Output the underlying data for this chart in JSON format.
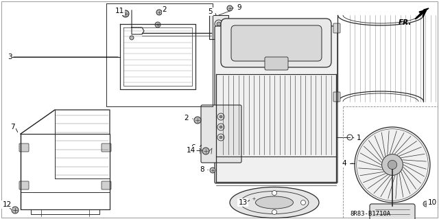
{
  "background_color": "#ffffff",
  "line_color": "#2a2a2a",
  "part_number_ref": "8R83-B1710A",
  "fr_label": "FR.",
  "figsize": [
    6.4,
    3.19
  ],
  "dpi": 100,
  "label_fontsize": 7.5,
  "ref_fontsize": 6.5
}
